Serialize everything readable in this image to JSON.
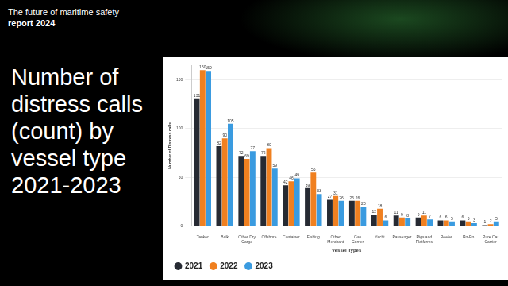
{
  "header": {
    "line1": "The future of maritime safety",
    "line2": "report 2024"
  },
  "chart_data": {
    "type": "bar",
    "title": "Number of distress calls (count) by vessel type 2021-2023",
    "x_label": "Vessel Types",
    "y_label": "Number of Distress calls",
    "categories": [
      "Tanker",
      "Bulk",
      "Other Dry Cargo",
      "Offshore",
      "Container",
      "Fishing",
      "Other Merchant",
      "Gas Carrier",
      "Yacht",
      "Passenger",
      "Rigs and Platforms",
      "Reefer",
      "Ro-Ro",
      "Pure Car Carrier"
    ],
    "series": [
      {
        "name": "2021",
        "color": "#262a33",
        "values": [
          131,
          82,
          72,
          72,
          42,
          39,
          27,
          26,
          12,
          11,
          9,
          6,
          6,
          1
        ]
      },
      {
        "name": "2022",
        "color": "#f08020",
        "values": [
          160,
          90,
          69,
          80,
          46,
          55,
          31,
          26,
          18,
          9,
          11,
          6,
          5,
          2
        ]
      },
      {
        "name": "2023",
        "color": "#3a9be0",
        "values": [
          159,
          105,
          77,
          59,
          49,
          33,
          26,
          20,
          6,
          8,
          7,
          5,
          3,
          5
        ]
      }
    ],
    "ylim": [
      0,
      165
    ],
    "yticks": [
      0,
      50,
      100,
      150
    ],
    "grid": true,
    "legend": "bottom",
    "data_labels": true
  }
}
